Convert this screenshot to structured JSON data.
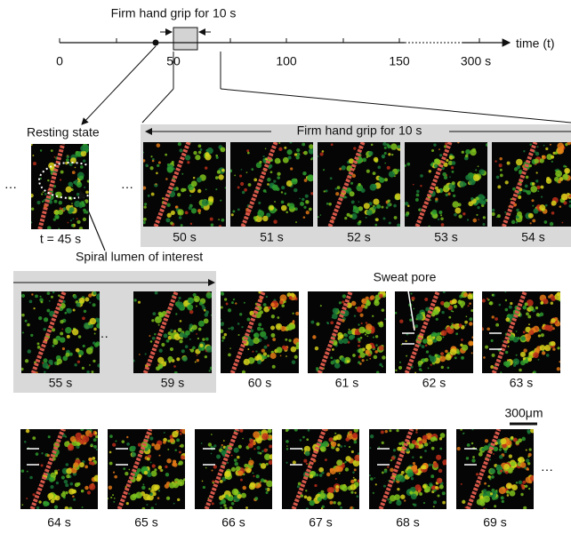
{
  "timeline": {
    "title": "Firm hand grip for 10 s",
    "ticks": [
      "0",
      "50",
      "100",
      "150",
      "300 s"
    ],
    "axis_label": "time (t)"
  },
  "resting": {
    "title": "Resting state",
    "time": "t = 45 s",
    "annotation": "Spiral lumen of interest"
  },
  "rows": [
    {
      "band_label": "Firm hand grip for 10 s",
      "frames": [
        "50 s",
        "51 s",
        "52 s",
        "53 s",
        "54 s"
      ]
    },
    {
      "frames": [
        "55 s",
        "59 s",
        "60 s",
        "61 s",
        "62 s",
        "63 s"
      ],
      "annotation": "Sweat pore"
    },
    {
      "frames": [
        "64 s",
        "65 s",
        "66 s",
        "67 s",
        "68 s",
        "69 s"
      ],
      "scale": "300μm"
    }
  ]
}
